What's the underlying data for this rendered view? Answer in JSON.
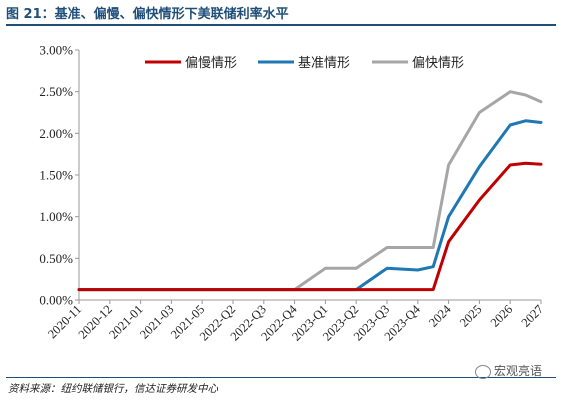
{
  "title": "图 21：基准、偏慢、偏快情形下美联储利率水平",
  "source": "资料来源：纽约联储银行，信达证券研发中心",
  "watermark": "宏观亮语",
  "chart_data": {
    "type": "line",
    "categories": [
      "2020-11",
      "2020-12",
      "2021-01",
      "2021-03",
      "2021-05",
      "2022-Q2",
      "2022-Q3",
      "2022-Q4",
      "2023-Q1",
      "2023-Q2",
      "2023-Q3",
      "2023-Q4",
      "2024",
      "2025",
      "2026",
      "2027"
    ],
    "x": [
      0,
      1,
      2,
      3,
      4,
      5,
      6,
      7,
      8,
      9,
      10,
      11,
      11.5,
      12,
      13,
      14,
      14.5,
      15
    ],
    "ylim": [
      0,
      3.0
    ],
    "yticks": [
      0,
      0.5,
      1.0,
      1.5,
      2.0,
      2.5,
      3.0
    ],
    "ytick_labels": [
      "0.00%",
      "0.50%",
      "1.00%",
      "1.50%",
      "2.00%",
      "2.50%",
      "3.00%"
    ],
    "legend_position": "top",
    "grid": false,
    "series": [
      {
        "name": "偏慢情形",
        "color": "#c00000",
        "values": [
          0.125,
          0.125,
          0.125,
          0.125,
          0.125,
          0.125,
          0.125,
          0.125,
          0.125,
          0.125,
          0.125,
          0.125,
          0.125,
          0.7,
          1.2,
          1.62,
          1.64,
          1.63
        ]
      },
      {
        "name": "基准情形",
        "color": "#1f77b4",
        "values": [
          0.125,
          0.125,
          0.125,
          0.125,
          0.125,
          0.125,
          0.125,
          0.125,
          0.125,
          0.125,
          0.38,
          0.36,
          0.4,
          1.0,
          1.6,
          2.1,
          2.15,
          2.13
        ]
      },
      {
        "name": "偏快情形",
        "color": "#a6a6a6",
        "values": [
          0.125,
          0.125,
          0.125,
          0.125,
          0.125,
          0.125,
          0.125,
          0.125,
          0.38,
          0.38,
          0.63,
          0.63,
          0.63,
          1.62,
          2.25,
          2.5,
          2.46,
          2.38
        ]
      }
    ]
  }
}
